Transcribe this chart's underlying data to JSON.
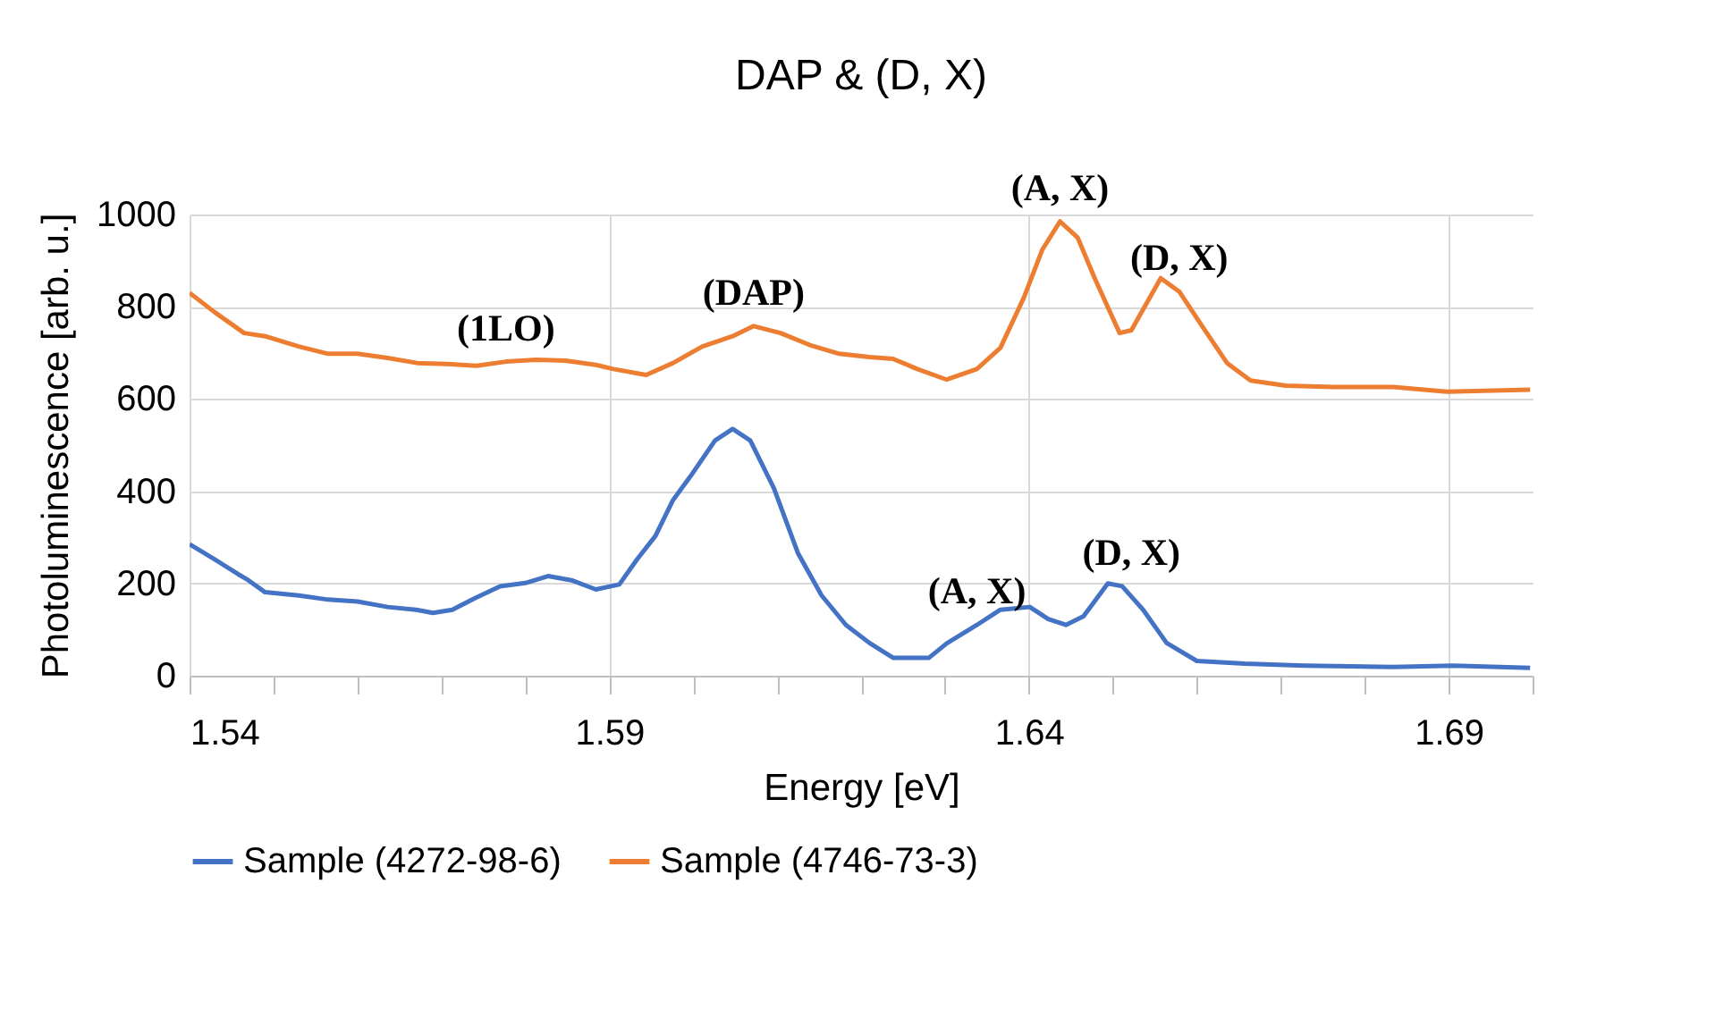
{
  "chart_data": {
    "type": "line",
    "title": "DAP & (D, X)",
    "xlabel": "Energy [eV]",
    "ylabel": "Photoluminescence [arb. u.]",
    "xlim": [
      1.54,
      1.7
    ],
    "ylim": [
      0,
      1000
    ],
    "xticks": [
      1.54,
      {
        "value": 1.55,
        "label": null
      },
      {
        "value": 1.56,
        "label": null
      },
      {
        "value": 1.57,
        "label": null
      },
      {
        "value": 1.58,
        "label": null
      },
      1.59,
      {
        "value": 1.6,
        "label": null
      },
      {
        "value": 1.61,
        "label": null
      },
      {
        "value": 1.62,
        "label": null
      },
      {
        "value": 1.63,
        "label": null
      },
      1.64,
      {
        "value": 1.65,
        "label": null
      },
      {
        "value": 1.66,
        "label": null
      },
      {
        "value": 1.67,
        "label": null
      },
      {
        "value": 1.68,
        "label": null
      },
      1.69,
      {
        "value": 1.7,
        "label": null
      }
    ],
    "yticks": [
      0,
      200,
      400,
      600,
      800,
      1000
    ],
    "grid": true,
    "legend": "bottom",
    "marker": "none",
    "line_style": "solid",
    "series": [
      {
        "name": "Sample (4272-98-6)",
        "color": "#4472c4",
        "x": [
          1.54,
          1.543,
          1.5458,
          1.547,
          1.549,
          1.553,
          1.5565,
          1.56,
          1.5636,
          1.567,
          1.569,
          1.5713,
          1.574,
          1.577,
          1.58,
          1.5827,
          1.5855,
          1.5884,
          1.5912,
          1.5933,
          1.5955,
          1.5976,
          1.5997,
          1.6026,
          1.6047,
          1.6068,
          1.6096,
          1.6125,
          1.6153,
          1.6182,
          1.621,
          1.6238,
          1.6281,
          1.6302,
          1.6338,
          1.6366,
          1.6401,
          1.6423,
          1.6444,
          1.6465,
          1.6494,
          1.6511,
          1.6536,
          1.6564,
          1.66,
          1.6657,
          1.6728,
          1.6834,
          1.6905,
          1.6997
        ],
        "values": [
          285,
          252,
          220,
          207,
          181,
          174,
          165,
          161,
          149,
          143,
          136,
          143,
          168,
          194,
          201,
          216,
          207,
          187,
          198,
          252,
          303,
          381,
          433,
          510,
          535,
          510,
          407,
          265,
          174,
          110,
          71,
          39,
          39,
          70,
          110,
          143,
          149,
          123,
          110,
          129,
          200,
          194,
          143,
          71,
          32,
          26,
          22,
          19,
          22,
          17
        ]
      },
      {
        "name": "Sample (4746-73-3)",
        "color": "#ed7d31",
        "x": [
          1.54,
          1.543,
          1.5465,
          1.549,
          1.553,
          1.5565,
          1.56,
          1.5636,
          1.5671,
          1.5706,
          1.5742,
          1.5777,
          1.5813,
          1.5848,
          1.5884,
          1.5905,
          1.5944,
          1.5976,
          1.6011,
          1.6047,
          1.6072,
          1.6104,
          1.6139,
          1.6174,
          1.621,
          1.6238,
          1.6267,
          1.6302,
          1.6338,
          1.6366,
          1.6394,
          1.6416,
          1.6437,
          1.6458,
          1.6479,
          1.6508,
          1.6522,
          1.6557,
          1.6579,
          1.6607,
          1.6636,
          1.6664,
          1.6706,
          1.6763,
          1.6834,
          1.6898,
          1.6997
        ],
        "values": [
          830,
          788,
          743,
          736,
          714,
          698,
          698,
          689,
          678,
          676,
          672,
          681,
          685,
          683,
          674,
          665,
          652,
          678,
          714,
          736,
          758,
          743,
          717,
          698,
          691,
          687,
          665,
          642,
          665,
          711,
          820,
          924,
          985,
          950,
          859,
          743,
          749,
          862,
          833,
          756,
          678,
          640,
          629,
          626,
          626,
          616,
          620
        ]
      }
    ],
    "annotations": [
      {
        "text": "(1LO)",
        "x": 1.5777,
        "y": 681
      },
      {
        "text": "(DAP)",
        "x": 1.6072,
        "y": 758
      },
      {
        "text": "(A, X)",
        "x": 1.6437,
        "y": 985
      },
      {
        "text": "(D, X)",
        "x": 1.6579,
        "y": 833
      },
      {
        "text": "(A, X)",
        "x": 1.6338,
        "y": 110
      },
      {
        "text": "(D, X)",
        "x": 1.6522,
        "y": 194
      }
    ]
  }
}
